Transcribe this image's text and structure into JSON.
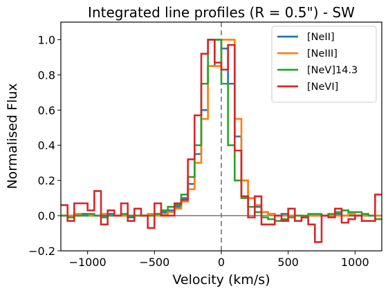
{
  "chart_data": {
    "type": "line",
    "step": true,
    "title": "Integrated line profiles (R = 0.5\") - SW",
    "xlabel": "Velocity (km/s)",
    "ylabel": "Normalised Flux",
    "xlim": [
      -1200,
      1200
    ],
    "ylim": [
      -0.2,
      1.1
    ],
    "xticks": [
      -1000,
      -500,
      0,
      500,
      1000
    ],
    "xtick_labels": [
      "−1000",
      "−500",
      "0",
      "500",
      "1000"
    ],
    "yticks": [
      -0.2,
      0.0,
      0.2,
      0.4,
      0.6,
      0.8,
      1.0
    ],
    "ytick_labels": [
      "−0.2",
      "0.0",
      "0.2",
      "0.4",
      "0.6",
      "0.8",
      "1.0"
    ],
    "grid": false,
    "legend_position": "top-right",
    "reference_lines": {
      "horizontal_y": 0.0,
      "vertical_x": 0,
      "horizontal_color": "#7f7f7f",
      "vertical_color": "#7f7f7f"
    },
    "series": [
      {
        "name": "[NeII]",
        "color": "#1f77b4",
        "x": [
          -1200,
          -1150,
          -1100,
          -1050,
          -1000,
          -950,
          -900,
          -850,
          -800,
          -750,
          -700,
          -650,
          -600,
          -550,
          -500,
          -450,
          -400,
          -350,
          -300,
          -250,
          -200,
          -150,
          -100,
          -50,
          0,
          50,
          100,
          150,
          200,
          250,
          300,
          350,
          400,
          450,
          500,
          550,
          600,
          650,
          700,
          750,
          800,
          850,
          900,
          950,
          1000,
          1050,
          1100,
          1150
        ],
        "values": [
          0.0,
          0.0,
          0.0,
          0.01,
          0.0,
          0.0,
          0.0,
          0.01,
          0.0,
          0.0,
          -0.01,
          0.0,
          0.0,
          0.0,
          0.01,
          0.02,
          0.03,
          0.05,
          0.1,
          0.18,
          0.35,
          0.6,
          0.85,
          1.0,
          0.95,
          0.75,
          0.45,
          0.2,
          0.1,
          0.05,
          0.02,
          0.01,
          0.0,
          0.01,
          0.0,
          0.0,
          -0.01,
          0.0,
          0.0,
          0.0,
          0.0,
          0.01,
          0.0,
          0.0,
          0.0,
          0.0,
          0.0,
          0.0
        ]
      },
      {
        "name": "[NeIII]",
        "color": "#ff7f0e",
        "x": [
          -1200,
          -1150,
          -1100,
          -1050,
          -1000,
          -950,
          -900,
          -850,
          -800,
          -750,
          -700,
          -650,
          -600,
          -550,
          -500,
          -450,
          -400,
          -350,
          -300,
          -250,
          -200,
          -150,
          -100,
          -50,
          0,
          50,
          100,
          150,
          200,
          250,
          300,
          350,
          400,
          450,
          500,
          550,
          600,
          650,
          700,
          750,
          800,
          850,
          900,
          950,
          1000,
          1050,
          1100,
          1150
        ],
        "values": [
          0.0,
          0.0,
          0.01,
          0.0,
          0.0,
          0.0,
          0.01,
          0.0,
          0.0,
          0.0,
          0.0,
          0.0,
          0.0,
          0.01,
          0.0,
          0.01,
          0.02,
          0.04,
          0.08,
          0.15,
          0.3,
          0.55,
          0.85,
          0.85,
          1.0,
          1.0,
          0.55,
          0.2,
          0.1,
          0.06,
          0.02,
          0.01,
          0.0,
          0.0,
          0.0,
          0.0,
          -0.01,
          0.0,
          0.0,
          0.0,
          0.0,
          0.0,
          0.0,
          0.01,
          0.0,
          0.0,
          0.0,
          0.0
        ]
      },
      {
        "name": "[NeV]14.3",
        "color": "#2ca02c",
        "x": [
          -1200,
          -1150,
          -1100,
          -1050,
          -1000,
          -950,
          -900,
          -850,
          -800,
          -750,
          -700,
          -650,
          -600,
          -550,
          -500,
          -450,
          -400,
          -350,
          -300,
          -250,
          -200,
          -150,
          -100,
          -50,
          0,
          50,
          100,
          150,
          200,
          250,
          300,
          350,
          400,
          450,
          500,
          550,
          600,
          650,
          700,
          750,
          800,
          850,
          900,
          950,
          1000,
          1050,
          1100,
          1150
        ],
        "values": [
          0.0,
          -0.01,
          0.0,
          0.0,
          0.01,
          0.0,
          -0.01,
          0.0,
          0.0,
          0.01,
          0.0,
          0.0,
          0.0,
          0.0,
          0.01,
          0.03,
          0.05,
          0.06,
          0.12,
          0.22,
          0.4,
          0.75,
          1.0,
          1.0,
          0.75,
          0.4,
          0.2,
          0.1,
          0.05,
          0.02,
          -0.01,
          -0.02,
          -0.03,
          -0.02,
          -0.01,
          0.0,
          0.0,
          0.01,
          0.01,
          0.0,
          0.01,
          0.02,
          0.03,
          0.02,
          0.02,
          0.01,
          0.0,
          -0.02
        ]
      },
      {
        "name": "[NeVI]",
        "color": "#d62728",
        "x": [
          -1200,
          -1150,
          -1100,
          -1050,
          -1000,
          -950,
          -900,
          -850,
          -800,
          -750,
          -700,
          -650,
          -600,
          -550,
          -500,
          -450,
          -400,
          -350,
          -300,
          -250,
          -200,
          -150,
          -100,
          -50,
          0,
          50,
          100,
          150,
          200,
          250,
          300,
          350,
          400,
          450,
          500,
          550,
          600,
          650,
          700,
          750,
          800,
          850,
          900,
          950,
          1000,
          1050,
          1100,
          1150
        ],
        "values": [
          0.06,
          -0.03,
          0.07,
          0.07,
          0.03,
          0.14,
          -0.05,
          0.03,
          0.0,
          0.07,
          -0.03,
          0.04,
          0.0,
          -0.07,
          0.07,
          0.0,
          0.0,
          0.07,
          0.09,
          0.32,
          0.57,
          0.92,
          1.0,
          0.87,
          0.83,
          0.97,
          0.37,
          0.11,
          -0.01,
          0.11,
          -0.05,
          -0.05,
          0.0,
          -0.03,
          0.04,
          -0.03,
          -0.01,
          -0.05,
          -0.15,
          0.0,
          -0.01,
          0.04,
          -0.04,
          -0.02,
          0.0,
          -0.03,
          -0.03,
          0.12
        ]
      }
    ]
  }
}
